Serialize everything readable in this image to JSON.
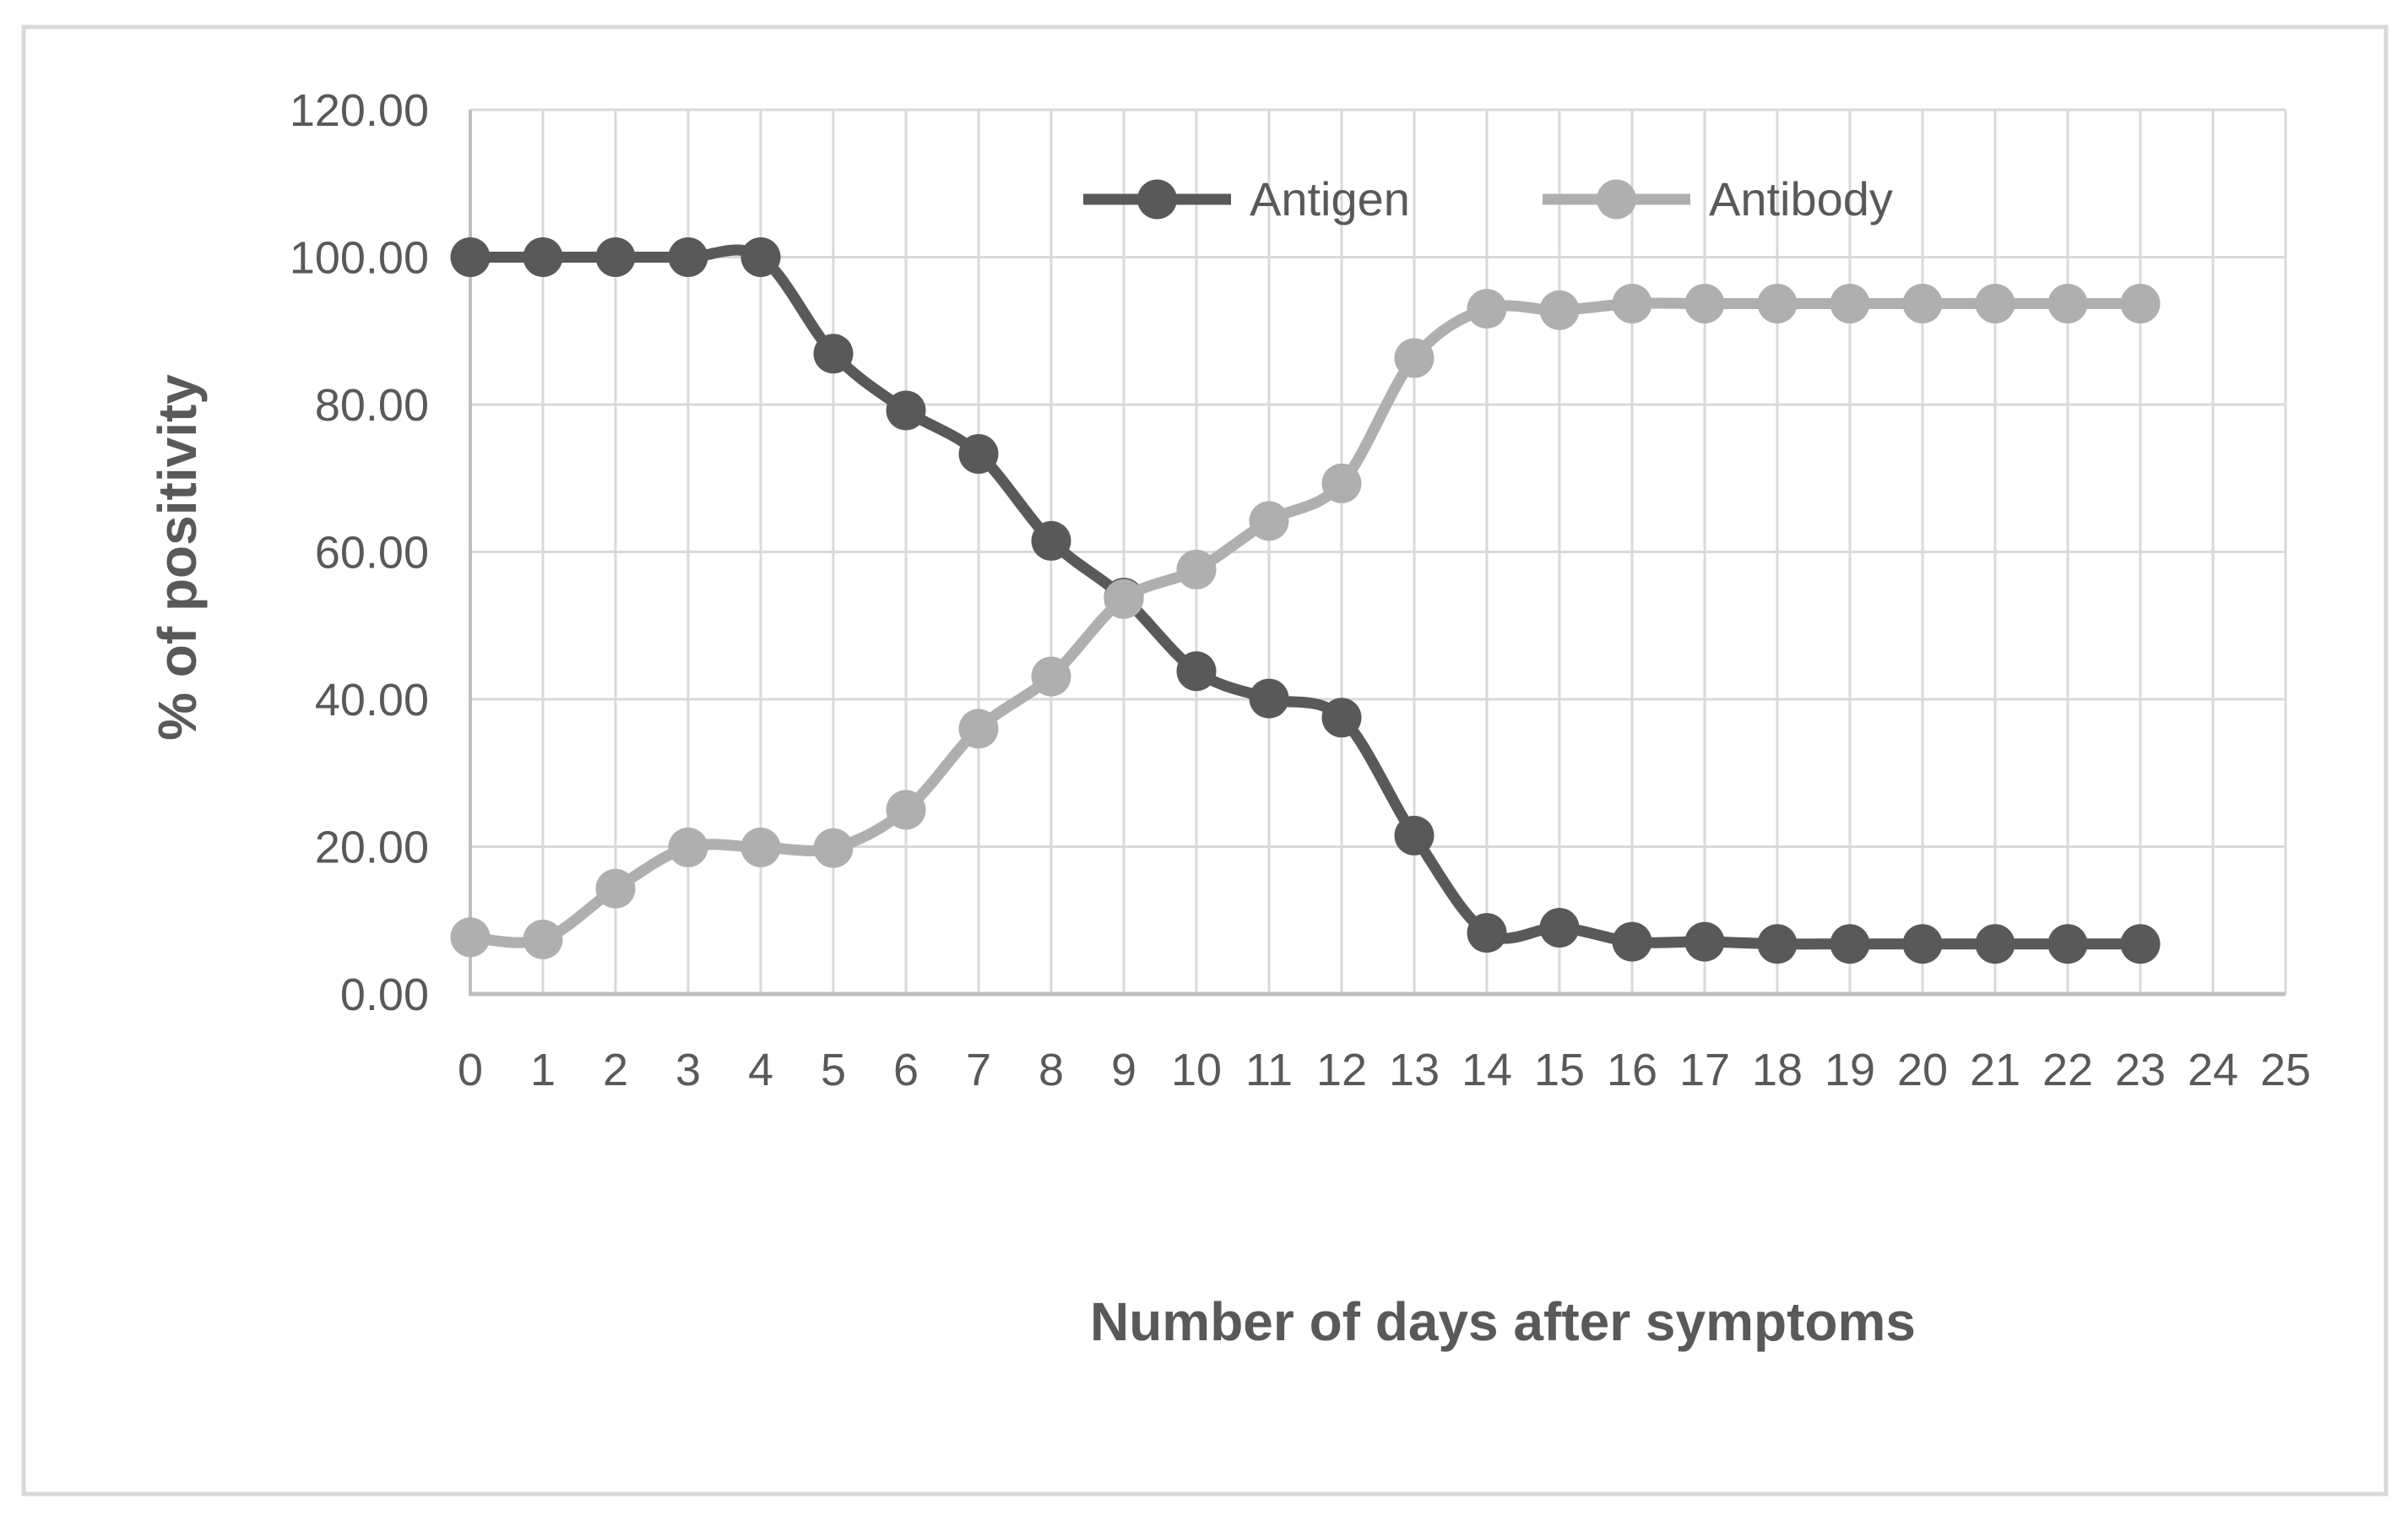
{
  "chart_data": {
    "type": "line",
    "title": "",
    "xlabel": "Number of days after symptoms",
    "ylabel": "% of positivity",
    "categories": [
      0,
      1,
      2,
      3,
      4,
      5,
      6,
      7,
      8,
      9,
      10,
      11,
      12,
      13,
      14,
      15,
      16,
      17,
      18,
      19,
      20,
      21,
      22,
      23
    ],
    "x_axis_ticks": [
      "0",
      "1",
      "2",
      "3",
      "4",
      "5",
      "6",
      "7",
      "8",
      "9",
      "10",
      "11",
      "12",
      "13",
      "14",
      "15",
      "16",
      "17",
      "18",
      "19",
      "20",
      "21",
      "22",
      "23",
      "24",
      "25"
    ],
    "y_axis_ticks": [
      "0.00",
      "20.00",
      "40.00",
      "60.00",
      "80.00",
      "100.00",
      "120.00"
    ],
    "ylim": [
      0,
      120
    ],
    "ytick_step": 20,
    "xlim_ticks": [
      0,
      25
    ],
    "grid": true,
    "line_style": "smooth",
    "legend_position": "inside-top-center",
    "series": [
      {
        "name": "Antigen",
        "color": "#595959",
        "values": [
          100,
          100,
          100,
          100,
          100,
          86.9,
          79.2,
          73.3,
          61.5,
          53.8,
          43.8,
          40.1,
          37.5,
          21.5,
          8.3,
          9.0,
          7.1,
          7.1,
          6.8,
          6.8,
          6.8,
          6.8,
          6.8,
          6.8
        ]
      },
      {
        "name": "Antibody",
        "color": "#AFAFAF",
        "values": [
          7.7,
          7.4,
          14.3,
          19.9,
          19.9,
          19.8,
          25.0,
          36.0,
          43.1,
          53.6,
          57.6,
          64.2,
          69.3,
          86.3,
          93.0,
          92.8,
          93.7,
          93.7,
          93.7,
          93.7,
          93.7,
          93.7,
          93.7,
          93.7
        ]
      }
    ],
    "colors": {
      "gridline": "#D9D9D9",
      "axis_line": "#BFBFBF",
      "text": "#595959",
      "background": "#FFFFFF",
      "frame_border": "#D9D9D9"
    }
  }
}
